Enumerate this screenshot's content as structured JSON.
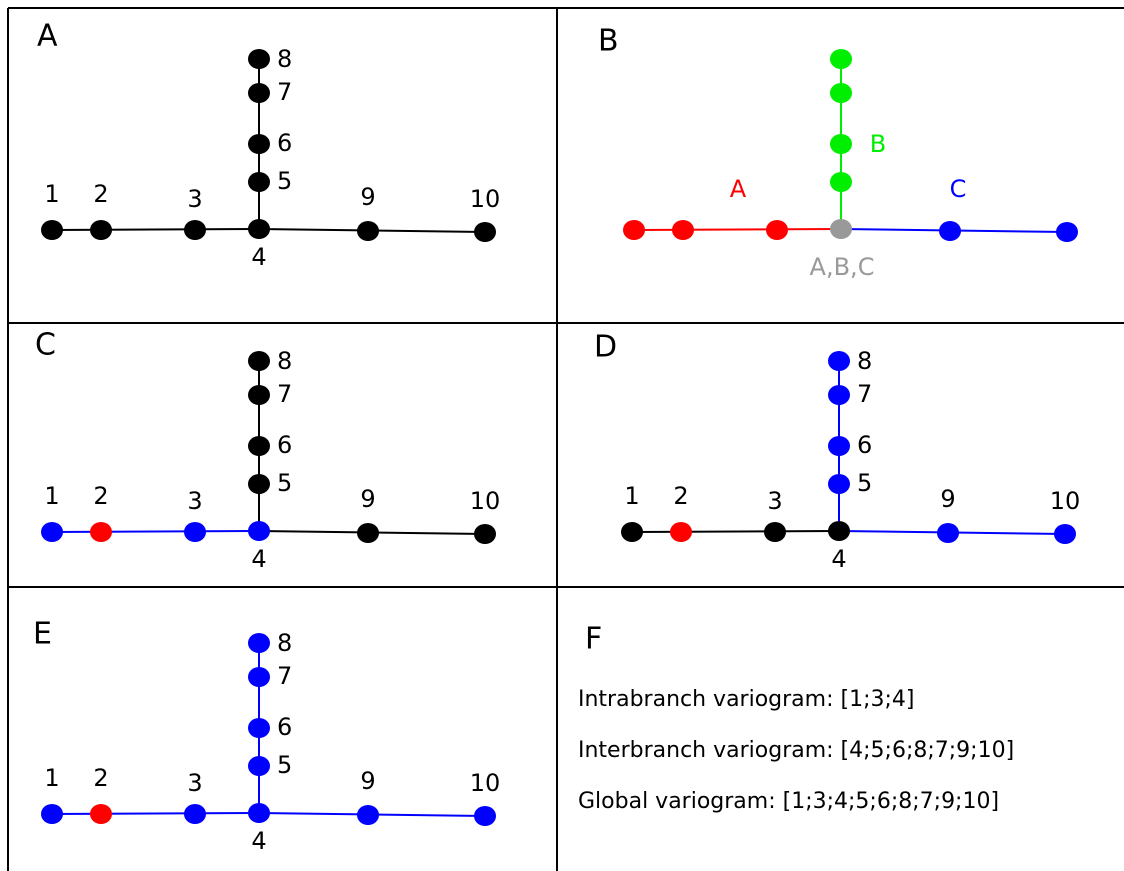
{
  "panels": [
    {
      "letter": "A",
      "node_labels": [
        "1",
        "2",
        "3",
        "4",
        "5",
        "6",
        "7",
        "8",
        "9",
        "10"
      ]
    },
    {
      "letter": "B",
      "branch_labels": [
        "A",
        "B",
        "C"
      ],
      "junction_label": "A,B,C"
    },
    {
      "letter": "C",
      "node_labels": [
        "1",
        "2",
        "3",
        "4",
        "5",
        "6",
        "7",
        "8",
        "9",
        "10"
      ]
    },
    {
      "letter": "D",
      "node_labels": [
        "1",
        "2",
        "3",
        "4",
        "5",
        "6",
        "7",
        "8",
        "9",
        "10"
      ]
    },
    {
      "letter": "E",
      "node_labels": [
        "1",
        "2",
        "3",
        "4",
        "5",
        "6",
        "7",
        "8",
        "9",
        "10"
      ]
    },
    {
      "letter": "F",
      "lines": [
        "Intrabranch variogram: [1;3;4]",
        "Interbranch variogram: [4;5;6;8;7;9;10]",
        "Global variogram: [1;3;4;5;6;8;7;9;10]"
      ]
    }
  ]
}
